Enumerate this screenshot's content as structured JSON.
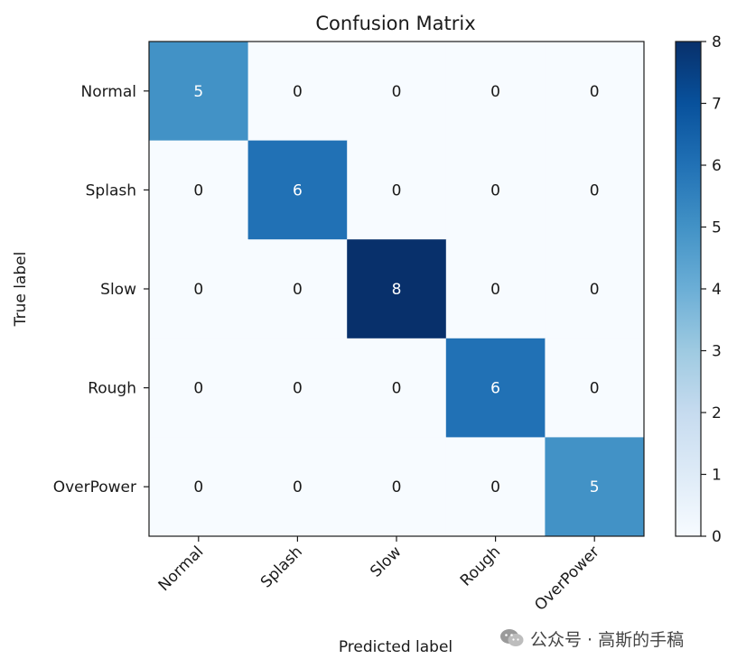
{
  "chart_data": {
    "type": "heatmap",
    "title": "Confusion Matrix",
    "xlabel": "Predicted label",
    "ylabel": "True label",
    "row_labels": [
      "Normal",
      "Splash",
      "Slow",
      "Rough",
      "OverPower"
    ],
    "col_labels": [
      "Normal",
      "Splash",
      "Slow",
      "Rough",
      "OverPower"
    ],
    "matrix": [
      [
        5,
        0,
        0,
        0,
        0
      ],
      [
        0,
        6,
        0,
        0,
        0
      ],
      [
        0,
        0,
        8,
        0,
        0
      ],
      [
        0,
        0,
        0,
        6,
        0
      ],
      [
        0,
        0,
        0,
        0,
        5
      ]
    ],
    "colormap": "Blues",
    "colorbar": {
      "min": 0,
      "max": 8,
      "ticks": [
        0,
        1,
        2,
        3,
        4,
        5,
        6,
        7,
        8
      ]
    },
    "colors": {
      "low": "#f7fbff",
      "high": "#08306b",
      "text_dark": "#1a1a1a",
      "text_light": "#ffffff"
    }
  },
  "watermark": {
    "text": "公众号 · 高斯的手稿",
    "icon": "wechat-icon"
  }
}
